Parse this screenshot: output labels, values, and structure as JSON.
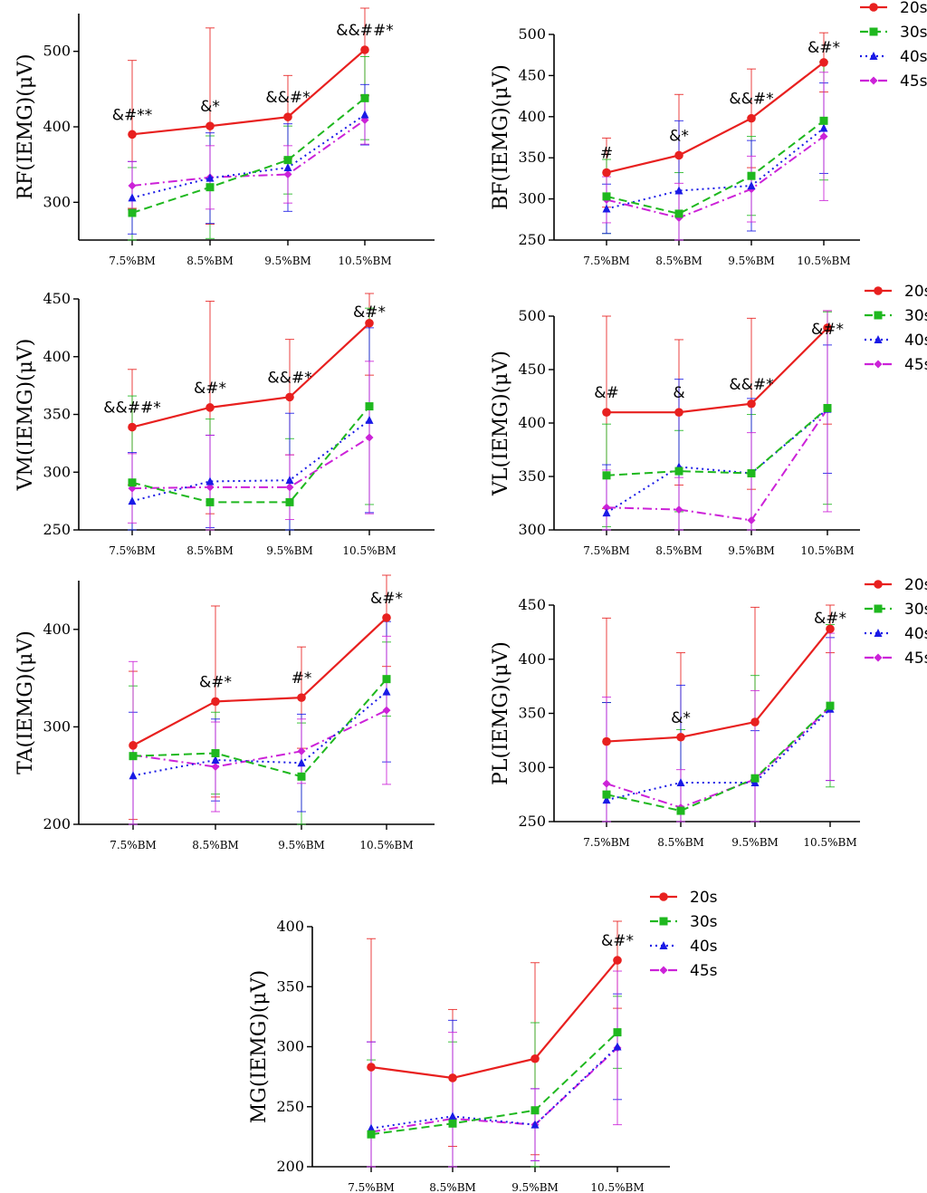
{
  "colors": {
    "20s": "#e8201f",
    "30s": "#1fb81f",
    "40s": "#1a1ae6",
    "45s": "#cc22d8"
  },
  "chart_data": [
    {
      "type": "line",
      "ylabel": "RF(IEMG)(μV)",
      "categories": [
        "7.5%BM",
        "8.5%BM",
        "9.5%BM",
        "10.5%BM"
      ],
      "ylim": [
        250,
        550
      ],
      "yticks": [
        300,
        400,
        500
      ],
      "series": [
        {
          "name": "20s",
          "values": [
            390,
            401,
            413,
            502
          ],
          "err": [
            98,
            130,
            55,
            60
          ]
        },
        {
          "name": "30s",
          "values": [
            286,
            320,
            356,
            438
          ],
          "err": [
            60,
            68,
            45,
            55
          ]
        },
        {
          "name": "40s",
          "values": [
            306,
            332,
            346,
            416
          ],
          "err": [
            48,
            60,
            58,
            40
          ]
        },
        {
          "name": "45s",
          "values": [
            322,
            333,
            337,
            409
          ],
          "err": [
            32,
            42,
            38,
            32
          ]
        }
      ],
      "annotations": [
        "&#**",
        "&*",
        "&&#*",
        "&&##*"
      ],
      "legend": false
    },
    {
      "type": "line",
      "ylabel": "BF(IEMG)(μV)",
      "categories": [
        "7.5%BM",
        "8.5%BM",
        "9.5%BM",
        "10.5%BM"
      ],
      "ylim": [
        250,
        500
      ],
      "yticks": [
        250,
        300,
        350,
        400,
        450,
        500
      ],
      "series": [
        {
          "name": "20s",
          "values": [
            332,
            353,
            398,
            466
          ],
          "err": [
            42,
            74,
            60,
            36
          ]
        },
        {
          "name": "30s",
          "values": [
            303,
            282,
            328,
            395
          ],
          "err": [
            45,
            50,
            48,
            72
          ]
        },
        {
          "name": "40s",
          "values": [
            288,
            310,
            316,
            386
          ],
          "err": [
            30,
            85,
            55,
            55
          ]
        },
        {
          "name": "45s",
          "values": [
            299,
            277,
            312,
            376
          ],
          "err": [
            28,
            42,
            40,
            78
          ]
        }
      ],
      "annotations": [
        "#",
        "&*",
        "&&#*",
        "&#*"
      ],
      "legend": true
    },
    {
      "type": "line",
      "ylabel": "VM(IEMG)(μV)",
      "categories": [
        "7.5%BM",
        "8.5%BM",
        "9.5%BM",
        "10.5%BM"
      ],
      "ylim": [
        250,
        450
      ],
      "yticks": [
        250,
        300,
        350,
        400,
        450
      ],
      "series": [
        {
          "name": "20s",
          "values": [
            339,
            356,
            365,
            429
          ],
          "err": [
            50,
            92,
            50,
            45
          ]
        },
        {
          "name": "30s",
          "values": [
            291,
            274,
            274,
            357
          ],
          "err": [
            75,
            72,
            55,
            85
          ]
        },
        {
          "name": "40s",
          "values": [
            275,
            292,
            293,
            345
          ],
          "err": [
            42,
            40,
            58,
            80
          ]
        },
        {
          "name": "45s",
          "values": [
            286,
            287,
            287,
            330
          ],
          "err": [
            30,
            45,
            28,
            66
          ]
        }
      ],
      "annotations": [
        "&&##*",
        "&#*",
        "&&#*",
        "&#*"
      ],
      "legend": false
    },
    {
      "type": "line",
      "ylabel": "VL(IEMG)(μV)",
      "categories": [
        "7.5%BM",
        "8.5%BM",
        "9.5%BM",
        "10.5%BM"
      ],
      "ylim": [
        300,
        500
      ],
      "yticks": [
        300,
        350,
        400,
        450,
        500
      ],
      "series": [
        {
          "name": "20s",
          "values": [
            410,
            410,
            418,
            489
          ],
          "err": [
            90,
            68,
            80,
            90
          ]
        },
        {
          "name": "30s",
          "values": [
            351,
            355,
            353,
            414
          ],
          "err": [
            48,
            38,
            55,
            90
          ]
        },
        {
          "name": "40s",
          "values": [
            316,
            359,
            353,
            413
          ],
          "err": [
            45,
            82,
            70,
            60
          ]
        },
        {
          "name": "45s",
          "values": [
            321,
            319,
            309,
            413
          ],
          "err": [
            35,
            30,
            82,
            96
          ]
        }
      ],
      "annotations": [
        "&#",
        "&",
        "&&#*",
        "&#*"
      ],
      "legend": true
    },
    {
      "type": "line",
      "ylabel": "TA(IEMG)(μV)",
      "categories": [
        "7.5%BM",
        "8.5%BM",
        "9.5%BM",
        "10.5%BM"
      ],
      "ylim": [
        200,
        450
      ],
      "yticks": [
        200,
        300,
        400
      ],
      "series": [
        {
          "name": "20s",
          "values": [
            281,
            326,
            330,
            412
          ],
          "err": [
            76,
            98,
            52,
            50
          ]
        },
        {
          "name": "30s",
          "values": [
            270,
            273,
            249,
            349
          ],
          "err": [
            72,
            42,
            55,
            38
          ]
        },
        {
          "name": "40s",
          "values": [
            250,
            266,
            263,
            336
          ],
          "err": [
            65,
            42,
            50,
            72
          ]
        },
        {
          "name": "45s",
          "values": [
            271,
            259,
            275,
            317
          ],
          "err": [
            96,
            46,
            33,
            76
          ]
        }
      ],
      "annotations": [
        "",
        "&#*",
        "#*",
        "&#*"
      ],
      "legend": false
    },
    {
      "type": "line",
      "ylabel": "PL(IEMG)(μV)",
      "categories": [
        "7.5%BM",
        "8.5%BM",
        "9.5%BM",
        "10.5%BM"
      ],
      "ylim": [
        250,
        450
      ],
      "yticks": [
        250,
        300,
        350,
        400,
        450
      ],
      "series": [
        {
          "name": "20s",
          "values": [
            324,
            328,
            342,
            428
          ],
          "err": [
            114,
            78,
            106,
            22
          ]
        },
        {
          "name": "30s",
          "values": [
            275,
            260,
            290,
            357
          ],
          "err": [
            85,
            75,
            95,
            75
          ]
        },
        {
          "name": "40s",
          "values": [
            270,
            286,
            286,
            354
          ],
          "err": [
            90,
            90,
            48,
            66
          ]
        },
        {
          "name": "45s",
          "values": [
            285,
            263,
            289,
            356
          ],
          "err": [
            80,
            35,
            82,
            68
          ]
        }
      ],
      "annotations": [
        "",
        "&*",
        "",
        "&#*"
      ],
      "legend": true
    },
    {
      "type": "line",
      "ylabel": "MG(IEMG)(μV)",
      "categories": [
        "7.5%BM",
        "8.5%BM",
        "9.5%BM",
        "10.5%BM"
      ],
      "ylim": [
        200,
        400
      ],
      "yticks": [
        200,
        250,
        300,
        350,
        400
      ],
      "series": [
        {
          "name": "20s",
          "values": [
            283,
            274,
            290,
            372
          ],
          "err": [
            107,
            57,
            80,
            40
          ]
        },
        {
          "name": "30s",
          "values": [
            227,
            236,
            247,
            312
          ],
          "err": [
            62,
            68,
            73,
            30
          ]
        },
        {
          "name": "40s",
          "values": [
            232,
            242,
            235,
            300
          ],
          "err": [
            72,
            80,
            30,
            44
          ]
        },
        {
          "name": "45s",
          "values": [
            229,
            240,
            235,
            299
          ],
          "err": [
            75,
            72,
            30,
            64
          ]
        }
      ],
      "annotations": [
        "",
        "",
        "",
        "&#*"
      ],
      "legend": true
    }
  ]
}
